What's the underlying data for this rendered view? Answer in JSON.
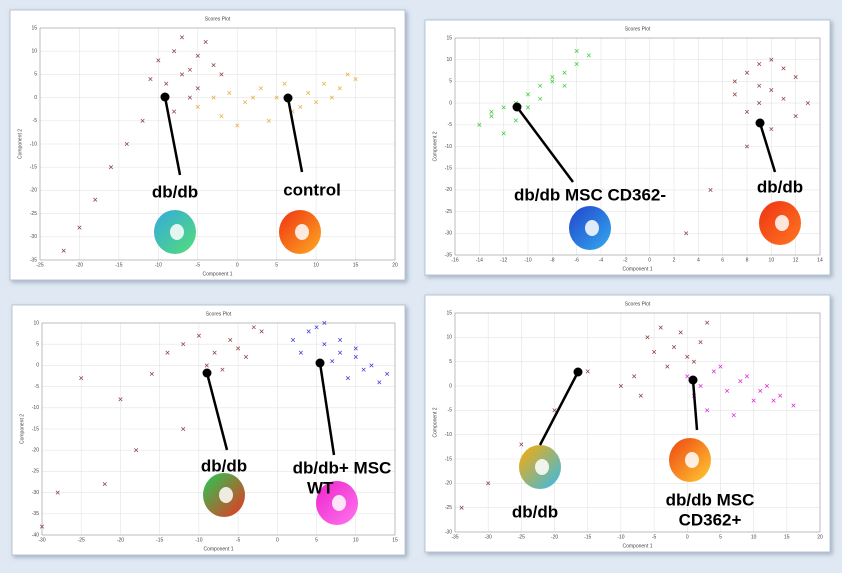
{
  "chart_data": [
    {
      "type": "scatter",
      "title": "Scores Plot",
      "xlabel": "Component 1",
      "ylabel": "Component 2",
      "xlim": [
        -25,
        20
      ],
      "xticks": [
        -25,
        -20,
        -15,
        -10,
        -5,
        0,
        5,
        10,
        15,
        20
      ],
      "ylim": [
        -35,
        15
      ],
      "yticks": [
        -35,
        -30,
        -25,
        -20,
        -15,
        -10,
        -5,
        0,
        5,
        10,
        15
      ],
      "grid": true,
      "series": [
        {
          "color": "#8b3a3a",
          "x": [
            -10,
            -8,
            -6,
            -4,
            -9,
            -7,
            -5,
            -11,
            -3,
            -6,
            -8,
            -12,
            -14,
            -16,
            -18,
            -20,
            -22,
            -5,
            -7,
            -2
          ],
          "values": [
            8,
            10,
            6,
            12,
            3,
            5,
            9,
            4,
            7,
            0,
            -3,
            -5,
            -10,
            -15,
            -22,
            -28,
            -33,
            2,
            13,
            5
          ]
        },
        {
          "color": "#f0a830",
          "x": [
            -5,
            -3,
            -1,
            1,
            3,
            5,
            7,
            9,
            11,
            13,
            15,
            -2,
            4,
            8,
            12,
            0,
            6,
            10,
            14,
            2
          ],
          "values": [
            -2,
            0,
            1,
            -1,
            2,
            0,
            -3,
            1,
            3,
            2,
            4,
            -4,
            -5,
            -2,
            0,
            -6,
            3,
            -1,
            5,
            0
          ]
        }
      ],
      "annotations": [
        [
          "db/db"
        ],
        [
          "control"
        ]
      ]
    },
    {
      "type": "scatter",
      "title": "Scores Plot",
      "xlabel": "Component 1",
      "ylabel": "Component 2",
      "xlim": [
        -16,
        14
      ],
      "xticks": [
        -16,
        -14,
        -12,
        -10,
        -8,
        -6,
        -4,
        -2,
        0,
        2,
        4,
        6,
        8,
        10,
        12,
        14
      ],
      "ylim": [
        -35,
        15
      ],
      "yticks": [
        -35,
        -30,
        -25,
        -20,
        -15,
        -10,
        -5,
        0,
        5,
        10,
        15
      ],
      "grid": true,
      "series": [
        {
          "color": "#33cc33",
          "x": [
            -14,
            -13,
            -12,
            -11,
            -10,
            -9,
            -8,
            -7,
            -6,
            -5,
            -12,
            -11,
            -9,
            -7,
            -13,
            -10,
            -8,
            -6
          ],
          "values": [
            -5,
            -3,
            -1,
            0,
            2,
            4,
            5,
            7,
            9,
            11,
            -7,
            -4,
            1,
            4,
            -2,
            -1,
            6,
            12
          ]
        },
        {
          "color": "#8b3a3a",
          "x": [
            7,
            8,
            9,
            10,
            11,
            12,
            8,
            9,
            10,
            11,
            7,
            9,
            12,
            13,
            10,
            8,
            3,
            5
          ],
          "values": [
            5,
            7,
            9,
            3,
            1,
            6,
            -2,
            0,
            10,
            8,
            2,
            4,
            -3,
            0,
            -6,
            -10,
            -30,
            -20
          ]
        }
      ],
      "annotations": [
        [
          "db/db MSC CD362-"
        ],
        [
          "db/db"
        ]
      ]
    },
    {
      "type": "scatter",
      "title": "Scores Plot",
      "xlabel": "Component 1",
      "ylabel": "Component 2",
      "xlim": [
        -30,
        15
      ],
      "xticks": [
        -30,
        -25,
        -20,
        -15,
        -10,
        -5,
        0,
        5,
        10,
        15
      ],
      "ylim": [
        -40,
        10
      ],
      "yticks": [
        -40,
        -35,
        -30,
        -25,
        -20,
        -15,
        -10,
        -5,
        0,
        5,
        10
      ],
      "grid": true,
      "series": [
        {
          "color": "#8b3a3a",
          "x": [
            -12,
            -10,
            -8,
            -6,
            -4,
            -2,
            -9,
            -7,
            -5,
            -3,
            -14,
            -16,
            -20,
            -25,
            -28,
            -30,
            -18,
            -22,
            -12
          ],
          "values": [
            5,
            7,
            3,
            6,
            2,
            8,
            0,
            -1,
            4,
            9,
            3,
            -2,
            -8,
            -3,
            -30,
            -38,
            -20,
            -28,
            -15
          ]
        },
        {
          "color": "#3333dd",
          "x": [
            2,
            4,
            6,
            8,
            10,
            12,
            14,
            5,
            7,
            9,
            11,
            13,
            3,
            6,
            8,
            10
          ],
          "values": [
            6,
            8,
            5,
            3,
            2,
            0,
            -2,
            9,
            1,
            -3,
            -1,
            -4,
            3,
            10,
            6,
            4
          ]
        }
      ],
      "annotations": [
        [
          "db/db"
        ],
        [
          "db/db+ MSC",
          "WT"
        ]
      ]
    },
    {
      "type": "scatter",
      "title": "Scores Plot",
      "xlabel": "Component 1",
      "ylabel": "Component 2",
      "xlim": [
        -35,
        20
      ],
      "xticks": [
        -35,
        -30,
        -25,
        -20,
        -15,
        -10,
        -5,
        0,
        5,
        10,
        15,
        20
      ],
      "ylim": [
        -30,
        15
      ],
      "yticks": [
        -30,
        -25,
        -20,
        -15,
        -10,
        -5,
        0,
        5,
        10,
        15
      ],
      "grid": true,
      "series": [
        {
          "color": "#8b3a3a",
          "x": [
            -6,
            -4,
            -2,
            0,
            2,
            -3,
            -1,
            1,
            -5,
            -8,
            -10,
            -15,
            -20,
            -25,
            -30,
            -34,
            3,
            -7
          ],
          "values": [
            10,
            12,
            8,
            6,
            9,
            4,
            11,
            5,
            7,
            2,
            0,
            3,
            -5,
            -12,
            -20,
            -25,
            13,
            -2
          ]
        },
        {
          "color": "#e020e0",
          "x": [
            0,
            2,
            4,
            6,
            8,
            10,
            12,
            14,
            16,
            3,
            5,
            7,
            9,
            11,
            13,
            1
          ],
          "values": [
            2,
            0,
            3,
            -1,
            1,
            -3,
            0,
            -2,
            -4,
            -5,
            4,
            -6,
            2,
            -1,
            -3,
            -2
          ]
        }
      ],
      "annotations": [
        [
          "db/db"
        ],
        [
          "db/db MSC",
          "CD362+"
        ]
      ]
    }
  ]
}
